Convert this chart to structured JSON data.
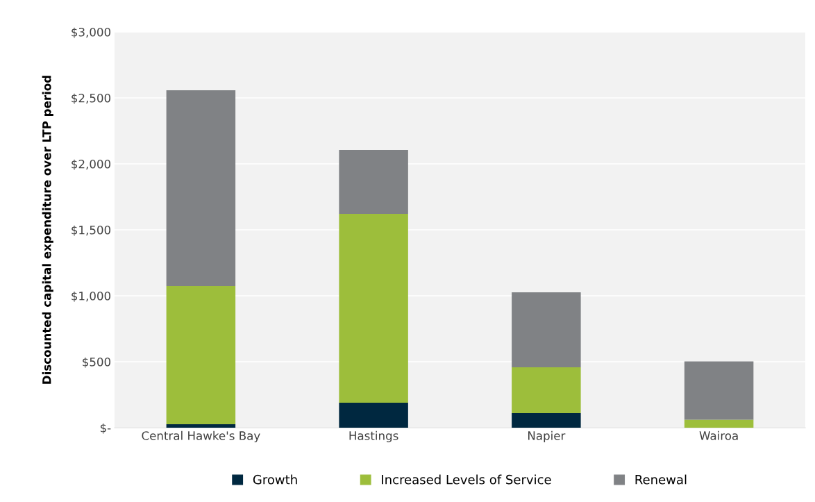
{
  "chart_data": {
    "type": "bar",
    "stacked": true,
    "ylabel": "Discounted capital expenditure over LTP period",
    "categories": [
      "Central Hawke's Bay",
      "Hastings",
      "Napier",
      "Wairoa"
    ],
    "series": [
      {
        "name": "Growth",
        "color": "#002840",
        "values": [
          26,
          189,
          111,
          null
        ]
      },
      {
        "name": "Increased Levels of Service",
        "color": "#9dbe3b",
        "values": [
          1048,
          1432,
          347,
          60
        ]
      },
      {
        "name": "Renewal",
        "color": "#808285",
        "values": [
          1484,
          484,
          568,
          442
        ]
      }
    ],
    "ylim": [
      0,
      3000
    ],
    "yticks": [
      {
        "value": 0,
        "label": "$-"
      },
      {
        "value": 500,
        "label": "$500"
      },
      {
        "value": 1000,
        "label": "$1,000"
      },
      {
        "value": 1500,
        "label": "$1,500"
      },
      {
        "value": 2000,
        "label": "$2,000"
      },
      {
        "value": 2500,
        "label": "$2,500"
      },
      {
        "value": 3000,
        "label": "$3,000"
      }
    ],
    "grid": "y",
    "legend": "bottom"
  }
}
